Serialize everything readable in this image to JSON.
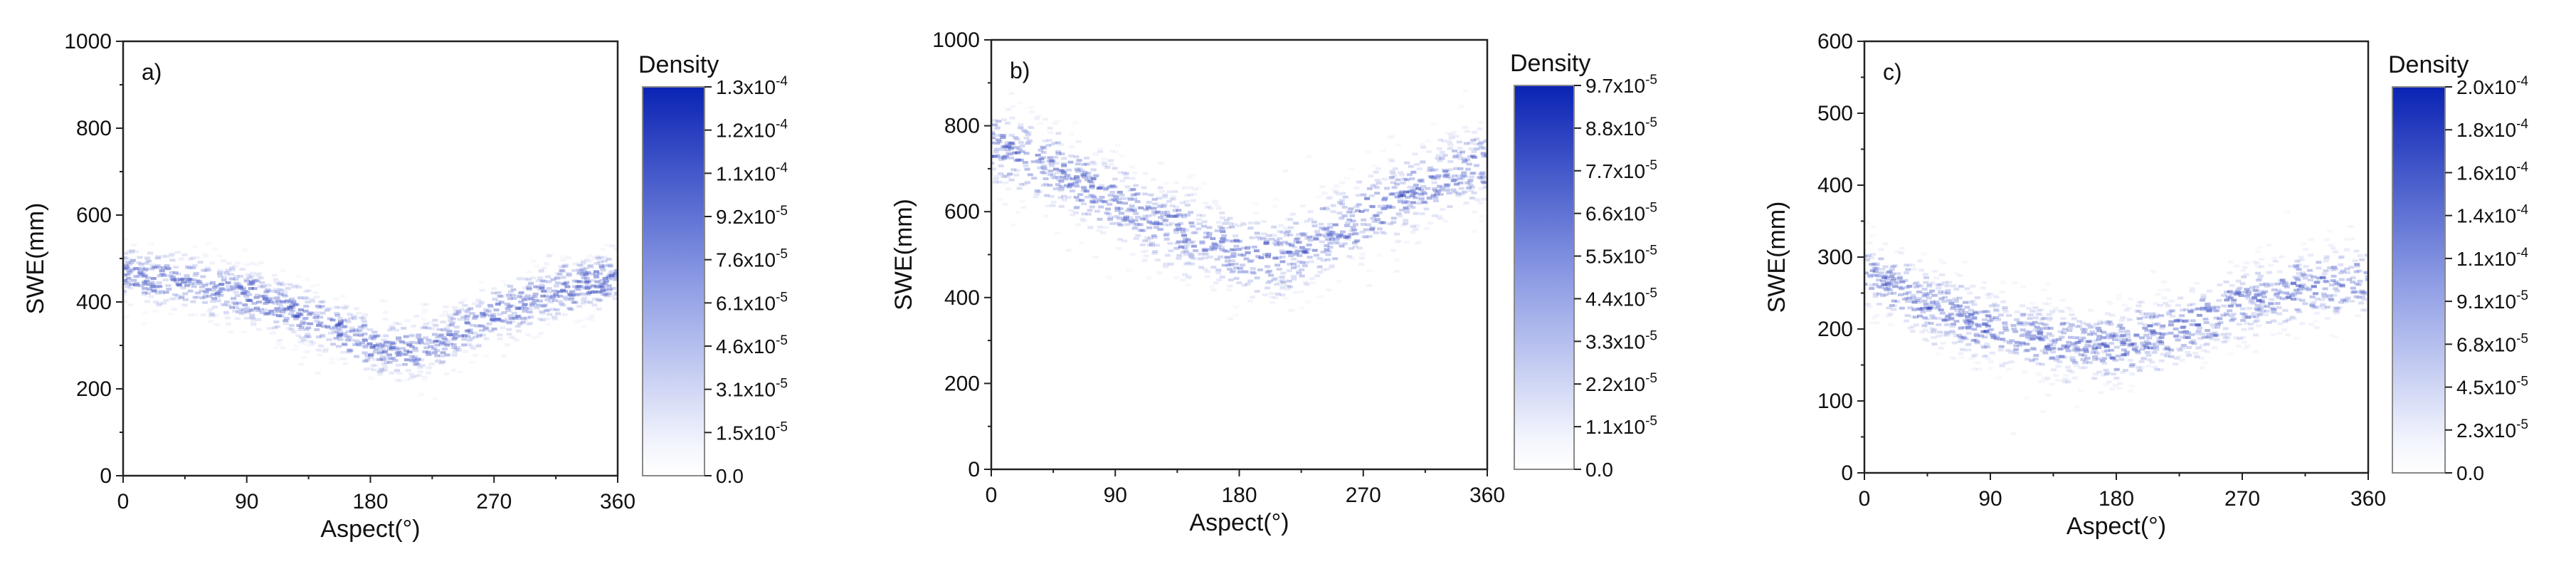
{
  "chart_data": [
    {
      "type": "heatmap",
      "panel_label": "a)",
      "xlabel": "Aspect(°)",
      "ylabel": "SWE(mm)",
      "xlim": [
        0,
        360
      ],
      "ylim": [
        0,
        1000
      ],
      "xticks": [
        "0",
        "90",
        "180",
        "270",
        "360"
      ],
      "yticks": [
        "0",
        "200",
        "400",
        "600",
        "800",
        "1000"
      ],
      "colorbar": {
        "title": "Density",
        "range": [
          0,
          0.00013
        ],
        "tick_labels": [
          {
            "mant": "0.0",
            "exp": ""
          },
          {
            "mant": "1.5x10",
            "exp": "-5"
          },
          {
            "mant": "3.1x10",
            "exp": "-5"
          },
          {
            "mant": "4.6x10",
            "exp": "-5"
          },
          {
            "mant": "6.1x10",
            "exp": "-5"
          },
          {
            "mant": "7.6x10",
            "exp": "-5"
          },
          {
            "mant": "9.2x10",
            "exp": "-5"
          },
          {
            "mant": "1.1x10",
            "exp": "-4"
          },
          {
            "mant": "1.2x10",
            "exp": "-4"
          },
          {
            "mant": "1.3x10",
            "exp": "-4"
          }
        ]
      },
      "trend": {
        "aspect": [
          0,
          45,
          90,
          135,
          180,
          200,
          225,
          270,
          315,
          360
        ],
        "swe": [
          465,
          445,
          415,
          365,
          305,
          290,
          300,
          370,
          420,
          460
        ]
      }
    },
    {
      "type": "heatmap",
      "panel_label": "b)",
      "xlabel": "Aspect(°)",
      "ylabel": "SWE(mm)",
      "xlim": [
        0,
        360
      ],
      "ylim": [
        0,
        1000
      ],
      "xticks": [
        "0",
        "90",
        "180",
        "270",
        "360"
      ],
      "yticks": [
        "0",
        "200",
        "400",
        "600",
        "800",
        "1000"
      ],
      "colorbar": {
        "title": "Density",
        "range": [
          0,
          9.7e-05
        ],
        "tick_labels": [
          {
            "mant": "0.0",
            "exp": ""
          },
          {
            "mant": "1.1x10",
            "exp": "-5"
          },
          {
            "mant": "2.2x10",
            "exp": "-5"
          },
          {
            "mant": "3.3x10",
            "exp": "-5"
          },
          {
            "mant": "4.4x10",
            "exp": "-5"
          },
          {
            "mant": "5.5x10",
            "exp": "-5"
          },
          {
            "mant": "6.6x10",
            "exp": "-5"
          },
          {
            "mant": "7.7x10",
            "exp": "-5"
          },
          {
            "mant": "8.8x10",
            "exp": "-5"
          },
          {
            "mant": "9.7x10",
            "exp": "-5"
          }
        ]
      },
      "trend": {
        "aspect": [
          0,
          45,
          90,
          135,
          180,
          200,
          225,
          270,
          315,
          360
        ],
        "swe": [
          755,
          700,
          625,
          555,
          495,
          485,
          510,
          590,
          660,
          720
        ]
      }
    },
    {
      "type": "heatmap",
      "panel_label": "c)",
      "xlabel": "Aspect(°)",
      "ylabel": "SWE(mm)",
      "xlim": [
        0,
        360
      ],
      "ylim": [
        0,
        600
      ],
      "xticks": [
        "0",
        "90",
        "180",
        "270",
        "360"
      ],
      "yticks": [
        "0",
        "100",
        "200",
        "300",
        "400",
        "500",
        "600"
      ],
      "colorbar": {
        "title": "Density",
        "range": [
          0,
          0.0002
        ],
        "tick_labels": [
          {
            "mant": "0.0",
            "exp": ""
          },
          {
            "mant": "2.3x10",
            "exp": "-5"
          },
          {
            "mant": "4.5x10",
            "exp": "-5"
          },
          {
            "mant": "6.8x10",
            "exp": "-5"
          },
          {
            "mant": "9.1x10",
            "exp": "-5"
          },
          {
            "mant": "1.1x10",
            "exp": "-4"
          },
          {
            "mant": "1.4x10",
            "exp": "-4"
          },
          {
            "mant": "1.6x10",
            "exp": "-4"
          },
          {
            "mant": "1.8x10",
            "exp": "-4"
          },
          {
            "mant": "2.0x10",
            "exp": "-4"
          }
        ]
      },
      "trend": {
        "aspect": [
          0,
          45,
          90,
          135,
          180,
          225,
          270,
          315,
          360
        ],
        "swe": [
          280,
          235,
          200,
          180,
          175,
          200,
          235,
          260,
          270
        ]
      }
    }
  ]
}
